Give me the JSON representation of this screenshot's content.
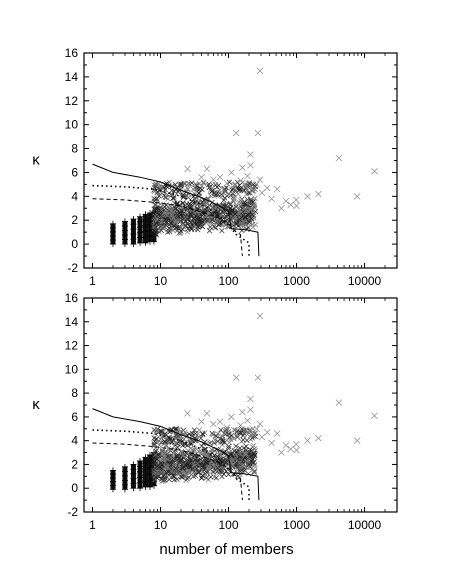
{
  "chart_data": [
    {
      "type": "scatter",
      "panel": "top",
      "x_scale": "log",
      "xlim": [
        0.75,
        30000
      ],
      "ylim": [
        -2,
        16
      ],
      "x_ticks": [
        1,
        10,
        100,
        1000,
        10000
      ],
      "x_tick_labels": [
        "1",
        "10",
        "100",
        "1000",
        "10000"
      ],
      "y_ticks": [
        -2,
        0,
        2,
        4,
        6,
        8,
        10,
        12,
        14,
        16
      ],
      "y_tick_labels": [
        "-2",
        "0",
        "2",
        "4",
        "6",
        "8",
        "10",
        "12",
        "14",
        "16"
      ],
      "ylabel": "κ",
      "xlabel": "",
      "series": [
        {
          "style": "dense-plus-columns",
          "x": [
            2,
            3,
            4,
            5,
            6,
            7,
            8
          ],
          "ymin": [
            0.0,
            0.0,
            0.0,
            0.1,
            0.1,
            0.2,
            0.2
          ],
          "ymax": [
            1.7,
            1.9,
            2.1,
            2.3,
            2.5,
            2.6,
            2.7
          ]
        },
        {
          "style": "cross-cloud",
          "x_range": [
            8,
            250
          ],
          "core_band": [
            0.6,
            3.6
          ],
          "high_tail_max": 5.2
        },
        {
          "style": "x-markers",
          "points": [
            [
              290,
              14.5
            ],
            [
              130,
              9.3
            ],
            [
              270,
              9.3
            ],
            [
              210,
              7.5
            ],
            [
              210,
              6.6
            ],
            [
              160,
              6.4
            ],
            [
              14000,
              6.1
            ],
            [
              110,
              6.0
            ],
            [
              48,
              6.3
            ],
            [
              25,
              6.3
            ],
            [
              190,
              5.7
            ],
            [
              290,
              5.4
            ],
            [
              4200,
              7.2
            ],
            [
              7800,
              4.0
            ],
            [
              2100,
              4.2
            ],
            [
              1450,
              4.0
            ],
            [
              990,
              3.7
            ],
            [
              820,
              3.3
            ],
            [
              600,
              3.0
            ],
            [
              430,
              3.8
            ],
            [
              370,
              4.7
            ],
            [
              310,
              4.3
            ],
            [
              520,
              4.6
            ],
            [
              700,
              3.6
            ],
            [
              1000,
              3.2
            ],
            [
              260,
              5.0
            ],
            [
              230,
              4.5
            ],
            [
              180,
              4.8
            ],
            [
              150,
              5.3
            ],
            [
              120,
              4.9
            ],
            [
              95,
              5.1
            ],
            [
              85,
              4.6
            ],
            [
              75,
              5.6
            ],
            [
              60,
              5.4
            ],
            [
              40,
              5.6
            ]
          ]
        },
        {
          "style": "solid-line",
          "points": [
            [
              1,
              6.7
            ],
            [
              2,
              6.0
            ],
            [
              5,
              5.6
            ],
            [
              10,
              5.2
            ],
            [
              20,
              4.5
            ],
            [
              40,
              3.9
            ],
            [
              80,
              3.1
            ],
            [
              100,
              2.7
            ],
            [
              110,
              1.3
            ],
            [
              180,
              1.2
            ],
            [
              270,
              1.0
            ],
            [
              280,
              -1.0
            ]
          ]
        },
        {
          "style": "dotted-line",
          "points": [
            [
              1,
              4.9
            ],
            [
              3,
              4.8
            ],
            [
              8,
              4.6
            ],
            [
              20,
              4.0
            ],
            [
              40,
              3.3
            ],
            [
              70,
              2.5
            ],
            [
              100,
              1.6
            ],
            [
              130,
              0.8
            ],
            [
              200,
              0.1
            ],
            [
              200,
              -1.0
            ]
          ]
        },
        {
          "style": "dashed-line",
          "points": [
            [
              1,
              3.8
            ],
            [
              3,
              3.7
            ],
            [
              8,
              3.5
            ],
            [
              20,
              3.2
            ],
            [
              40,
              2.7
            ],
            [
              70,
              2.2
            ],
            [
              100,
              1.7
            ],
            [
              130,
              1.0
            ],
            [
              150,
              0.8
            ],
            [
              160,
              -1.0
            ]
          ]
        }
      ]
    },
    {
      "type": "scatter",
      "panel": "bottom",
      "x_scale": "log",
      "xlim": [
        0.75,
        30000
      ],
      "ylim": [
        -2,
        16
      ],
      "x_ticks": [
        1,
        10,
        100,
        1000,
        10000
      ],
      "x_tick_labels": [
        "1",
        "10",
        "100",
        "1000",
        "10000"
      ],
      "y_ticks": [
        -2,
        0,
        2,
        4,
        6,
        8,
        10,
        12,
        14,
        16
      ],
      "y_tick_labels": [
        "-2",
        "0",
        "2",
        "4",
        "6",
        "8",
        "10",
        "12",
        "14",
        "16"
      ],
      "ylabel": "κ",
      "xlabel": "number of members",
      "series": [
        {
          "style": "dense-plus-columns",
          "x": [
            2,
            3,
            4,
            5,
            6,
            7,
            8
          ],
          "ymin": [
            -0.1,
            -0.1,
            0.0,
            0.0,
            0.1,
            0.1,
            0.2
          ],
          "ymax": [
            1.5,
            1.8,
            2.0,
            2.3,
            2.6,
            2.8,
            3.0
          ]
        },
        {
          "style": "cross-cloud",
          "x_range": [
            8,
            250
          ],
          "core_band": [
            0.3,
            3.4
          ],
          "high_tail_max": 5.0
        },
        {
          "style": "x-markers",
          "points": [
            [
              290,
              14.5
            ],
            [
              130,
              9.3
            ],
            [
              270,
              9.3
            ],
            [
              210,
              7.5
            ],
            [
              210,
              6.6
            ],
            [
              160,
              6.4
            ],
            [
              14000,
              6.1
            ],
            [
              110,
              6.0
            ],
            [
              48,
              6.3
            ],
            [
              25,
              6.3
            ],
            [
              190,
              5.7
            ],
            [
              290,
              5.4
            ],
            [
              4200,
              7.2
            ],
            [
              7800,
              4.0
            ],
            [
              2100,
              4.2
            ],
            [
              1450,
              4.0
            ],
            [
              990,
              3.7
            ],
            [
              820,
              3.3
            ],
            [
              600,
              3.0
            ],
            [
              430,
              3.8
            ],
            [
              370,
              4.7
            ],
            [
              310,
              4.3
            ],
            [
              520,
              4.6
            ],
            [
              700,
              3.6
            ],
            [
              1000,
              3.2
            ],
            [
              260,
              5.0
            ],
            [
              230,
              4.5
            ],
            [
              180,
              4.8
            ],
            [
              150,
              5.3
            ],
            [
              120,
              4.9
            ],
            [
              95,
              5.1
            ],
            [
              85,
              4.6
            ],
            [
              75,
              5.6
            ],
            [
              60,
              5.4
            ],
            [
              40,
              5.6
            ]
          ]
        },
        {
          "style": "solid-line",
          "points": [
            [
              1,
              6.7
            ],
            [
              2,
              6.0
            ],
            [
              5,
              5.6
            ],
            [
              10,
              5.2
            ],
            [
              20,
              4.5
            ],
            [
              40,
              3.9
            ],
            [
              80,
              3.1
            ],
            [
              100,
              2.7
            ],
            [
              110,
              1.3
            ],
            [
              180,
              1.2
            ],
            [
              270,
              1.0
            ],
            [
              280,
              -1.0
            ]
          ]
        },
        {
          "style": "dotted-line",
          "points": [
            [
              1,
              4.9
            ],
            [
              3,
              4.8
            ],
            [
              8,
              4.6
            ],
            [
              20,
              4.0
            ],
            [
              40,
              3.3
            ],
            [
              70,
              2.5
            ],
            [
              100,
              1.6
            ],
            [
              130,
              0.8
            ],
            [
              200,
              0.1
            ],
            [
              200,
              -1.0
            ]
          ]
        },
        {
          "style": "dashed-line",
          "points": [
            [
              1,
              3.8
            ],
            [
              3,
              3.7
            ],
            [
              8,
              3.5
            ],
            [
              20,
              3.2
            ],
            [
              40,
              2.7
            ],
            [
              70,
              2.2
            ],
            [
              100,
              1.7
            ],
            [
              130,
              1.0
            ],
            [
              150,
              0.8
            ],
            [
              160,
              -1.0
            ]
          ]
        }
      ]
    }
  ]
}
